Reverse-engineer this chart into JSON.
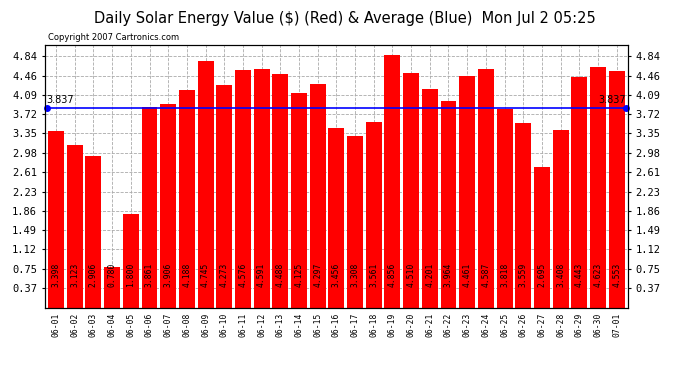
{
  "title": "Daily Solar Energy Value ($) (Red) & Average (Blue)  Mon Jul 2 05:25",
  "copyright": "Copyright 2007 Cartronics.com",
  "categories": [
    "06-01",
    "06-02",
    "06-03",
    "06-04",
    "06-05",
    "06-06",
    "06-07",
    "06-08",
    "06-09",
    "06-10",
    "06-11",
    "06-12",
    "06-13",
    "06-14",
    "06-15",
    "06-16",
    "06-17",
    "06-18",
    "06-19",
    "06-20",
    "06-21",
    "06-22",
    "06-23",
    "06-24",
    "06-25",
    "06-26",
    "06-27",
    "06-28",
    "06-29",
    "06-30",
    "07-01"
  ],
  "values": [
    3.398,
    3.123,
    2.906,
    0.78,
    1.8,
    3.861,
    3.906,
    4.188,
    4.745,
    4.273,
    4.576,
    4.591,
    4.488,
    4.125,
    4.297,
    3.456,
    3.308,
    3.561,
    4.856,
    4.51,
    4.201,
    3.964,
    4.461,
    4.587,
    3.818,
    3.559,
    2.695,
    3.408,
    4.443,
    4.623,
    4.553
  ],
  "average": 3.837,
  "bar_color": "#ff0000",
  "avg_line_color": "#0000ff",
  "background_color": "#ffffff",
  "plot_bg_color": "#ffffff",
  "grid_color": "#aaaaaa",
  "yticks": [
    0.37,
    0.75,
    1.12,
    1.49,
    1.86,
    2.23,
    2.61,
    2.98,
    3.35,
    3.72,
    4.09,
    4.46,
    4.84
  ],
  "ylim": [
    0.0,
    5.05
  ],
  "title_fontsize": 10.5,
  "label_fontsize": 5.8,
  "tick_fontsize": 7.5
}
